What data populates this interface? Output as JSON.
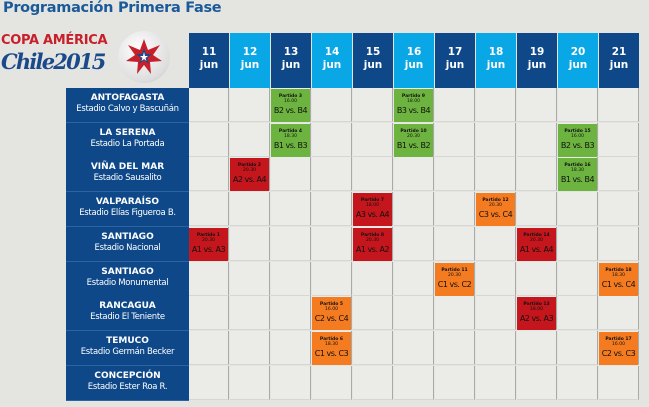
{
  "title": "Programación Primera Fase",
  "logo": {
    "line1": "COPA AMÉRICA",
    "line2": "Chile2015"
  },
  "colors": {
    "group_a": "#c4161c",
    "group_b": "#6db33f",
    "group_c": "#f47b20",
    "header_dark": "#0e4888",
    "header_light": "#09a7e5"
  },
  "days": [
    {
      "day": "11",
      "month": "jun"
    },
    {
      "day": "12",
      "month": "jun"
    },
    {
      "day": "13",
      "month": "jun"
    },
    {
      "day": "14",
      "month": "jun"
    },
    {
      "day": "15",
      "month": "jun"
    },
    {
      "day": "16",
      "month": "jun"
    },
    {
      "day": "17",
      "month": "jun"
    },
    {
      "day": "18",
      "month": "jun"
    },
    {
      "day": "19",
      "month": "jun"
    },
    {
      "day": "20",
      "month": "jun"
    },
    {
      "day": "21",
      "month": "jun"
    }
  ],
  "venues": [
    {
      "city": "ANTOFAGASTA",
      "stadium": "Estadio Calvo y Bascuñán"
    },
    {
      "city": "LA SERENA",
      "stadium": "Estadio La Portada"
    },
    {
      "city": "VIÑA DEL MAR",
      "stadium": "Estadio Sausalito"
    },
    {
      "city": "VALPARAÍSO",
      "stadium": "Estadio Elías Figueroa B."
    },
    {
      "city": "SANTIAGO",
      "stadium": "Estadio Nacional"
    },
    {
      "city": "SANTIAGO",
      "stadium": "Estadio Monumental"
    },
    {
      "city": "RANCAGUA",
      "stadium": "Estadio El Teniente"
    },
    {
      "city": "TEMUCO",
      "stadium": "Estadio Germán Becker"
    },
    {
      "city": "CONCEPCIÓN",
      "stadium": "Estadio Ester Roa R."
    }
  ],
  "matches": [
    {
      "label": "Partido 1",
      "time": "20.30",
      "teams": "A1 vs. A3",
      "day": "11",
      "venue": 4,
      "group": "a"
    },
    {
      "label": "Partido 2",
      "time": "20.30",
      "teams": "A2 vs. A4",
      "day": "12",
      "venue": 2,
      "group": "a"
    },
    {
      "label": "Partido 3",
      "time": "16.00",
      "teams": "B2 vs. B4",
      "day": "13",
      "venue": 0,
      "group": "b"
    },
    {
      "label": "Partido 4",
      "time": "18.30",
      "teams": "B1 vs. B3",
      "day": "13",
      "venue": 1,
      "group": "b"
    },
    {
      "label": "Partido 5",
      "time": "16.00",
      "teams": "C2 vs. C4",
      "day": "14",
      "venue": 6,
      "group": "c"
    },
    {
      "label": "Partido 6",
      "time": "18.30",
      "teams": "C1 vs. C3",
      "day": "14",
      "venue": 7,
      "group": "c"
    },
    {
      "label": "Partido 7",
      "time": "18.00",
      "teams": "A3 vs. A4",
      "day": "15",
      "venue": 3,
      "group": "a"
    },
    {
      "label": "Partido 8",
      "time": "20.30",
      "teams": "A1 vs. A2",
      "day": "15",
      "venue": 4,
      "group": "a"
    },
    {
      "label": "Partido 9",
      "time": "18.00",
      "teams": "B3 vs. B4",
      "day": "16",
      "venue": 0,
      "group": "b"
    },
    {
      "label": "Partido 10",
      "time": "20.30",
      "teams": "B1 vs. B2",
      "day": "16",
      "venue": 1,
      "group": "b"
    },
    {
      "label": "Partido 11",
      "time": "20.30",
      "teams": "C1 vs. C2",
      "day": "17",
      "venue": 5,
      "group": "c"
    },
    {
      "label": "Partido 12",
      "time": "20.30",
      "teams": "C3 vs. C4",
      "day": "18",
      "venue": 3,
      "group": "c"
    },
    {
      "label": "Partido 13",
      "time": "18.00",
      "teams": "A2 vs. A3",
      "day": "19",
      "venue": 6,
      "group": "a"
    },
    {
      "label": "Partido 14",
      "time": "20.30",
      "teams": "A1 vs. A4",
      "day": "19",
      "venue": 4,
      "group": "a"
    },
    {
      "label": "Partido 15",
      "time": "16.00",
      "teams": "B2 vs. B3",
      "day": "20",
      "venue": 1,
      "group": "b"
    },
    {
      "label": "Partido 16",
      "time": "18.30",
      "teams": "B1 vs. B4",
      "day": "20",
      "venue": 2,
      "group": "b"
    },
    {
      "label": "Partido 17",
      "time": "16.00",
      "teams": "C2 vs. C3",
      "day": "21",
      "venue": 7,
      "group": "c"
    },
    {
      "label": "Partido 18",
      "time": "18.30",
      "teams": "C1 vs. C4",
      "day": "21",
      "venue": 5,
      "group": "c"
    }
  ]
}
